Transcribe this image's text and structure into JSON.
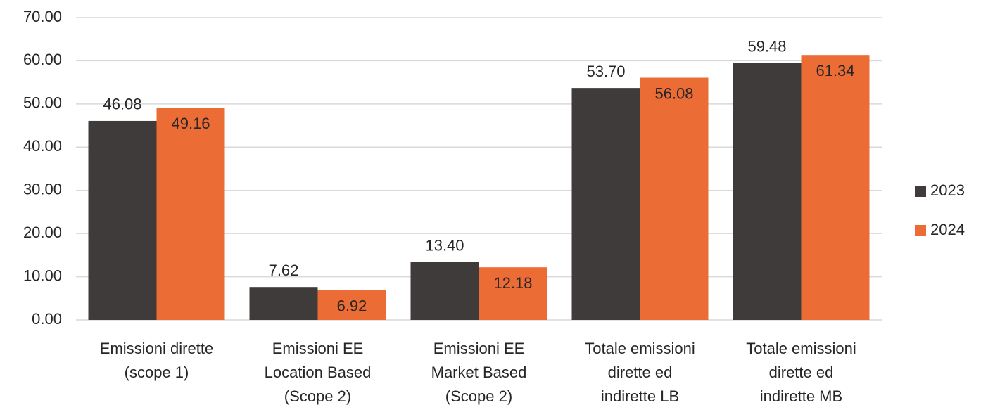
{
  "chart_data": {
    "type": "bar",
    "categories": [
      "Emissioni dirette\n(scope 1)",
      "Emissioni EE\nLocation Based\n(Scope 2)",
      "Emissioni EE\nMarket Based\n(Scope 2)",
      "Totale emissioni\ndirette ed\nindirette LB",
      "Totale emissioni\ndirette ed\nindirette MB"
    ],
    "series": [
      {
        "name": "2023",
        "color": "#403b3b",
        "values": [
          46.08,
          7.62,
          13.4,
          53.7,
          59.48
        ],
        "value_labels": [
          "46.08",
          "7.62",
          "13.40",
          "53.70",
          "59.48"
        ]
      },
      {
        "name": "2024",
        "color": "#ec6c36",
        "values": [
          49.16,
          6.92,
          12.18,
          56.08,
          61.34
        ],
        "value_labels": [
          "49.16",
          "6.92",
          "12.18",
          "56.08",
          "61.34"
        ]
      }
    ],
    "ylim": [
      0,
      70
    ],
    "yticks": [
      {
        "value": 0,
        "label": "0.00"
      },
      {
        "value": 10,
        "label": "10.00"
      },
      {
        "value": 20,
        "label": "20.00"
      },
      {
        "value": 30,
        "label": "30.00"
      },
      {
        "value": 40,
        "label": "40.00"
      },
      {
        "value": 50,
        "label": "50.00"
      },
      {
        "value": 60,
        "label": "60.00"
      },
      {
        "value": 70,
        "label": "70.00"
      }
    ],
    "grid": true,
    "legend": "right"
  }
}
